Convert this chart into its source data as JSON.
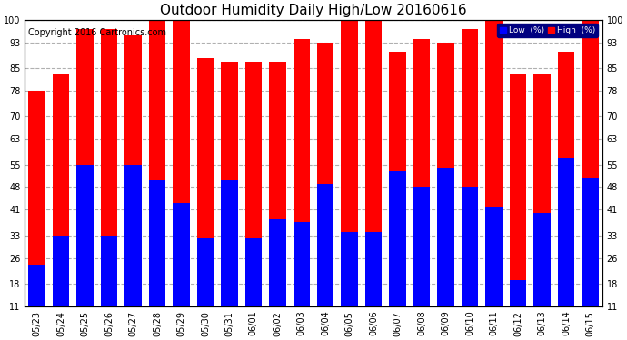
{
  "title": "Outdoor Humidity Daily High/Low 20160616",
  "copyright": "Copyright 2016 Cartronics.com",
  "legend_low": "Low  (%)",
  "legend_high": "High  (%)",
  "dates": [
    "05/23",
    "05/24",
    "05/25",
    "05/26",
    "05/27",
    "05/28",
    "05/29",
    "05/30",
    "05/31",
    "06/01",
    "06/02",
    "06/03",
    "06/04",
    "06/05",
    "06/06",
    "06/07",
    "06/08",
    "06/09",
    "06/10",
    "06/11",
    "06/12",
    "06/13",
    "06/14",
    "06/15"
  ],
  "high": [
    78,
    83,
    97,
    97,
    95,
    100,
    100,
    88,
    87,
    87,
    87,
    94,
    93,
    100,
    100,
    90,
    94,
    93,
    97,
    100,
    83,
    83,
    90,
    100
  ],
  "low": [
    24,
    33,
    55,
    33,
    55,
    50,
    43,
    32,
    50,
    32,
    38,
    37,
    49,
    34,
    34,
    53,
    48,
    54,
    48,
    42,
    19,
    40,
    57,
    51
  ],
  "bg_color": "#ffffff",
  "bar_high_color": "#ff0000",
  "bar_low_color": "#0000ff",
  "grid_color": "#b0b0b0",
  "ylim_min": 11,
  "ylim_max": 100,
  "yticks": [
    11,
    18,
    26,
    33,
    41,
    48,
    55,
    63,
    70,
    78,
    85,
    93,
    100
  ],
  "title_fontsize": 11,
  "copyright_fontsize": 7,
  "tick_fontsize": 7,
  "bar_width": 0.7
}
